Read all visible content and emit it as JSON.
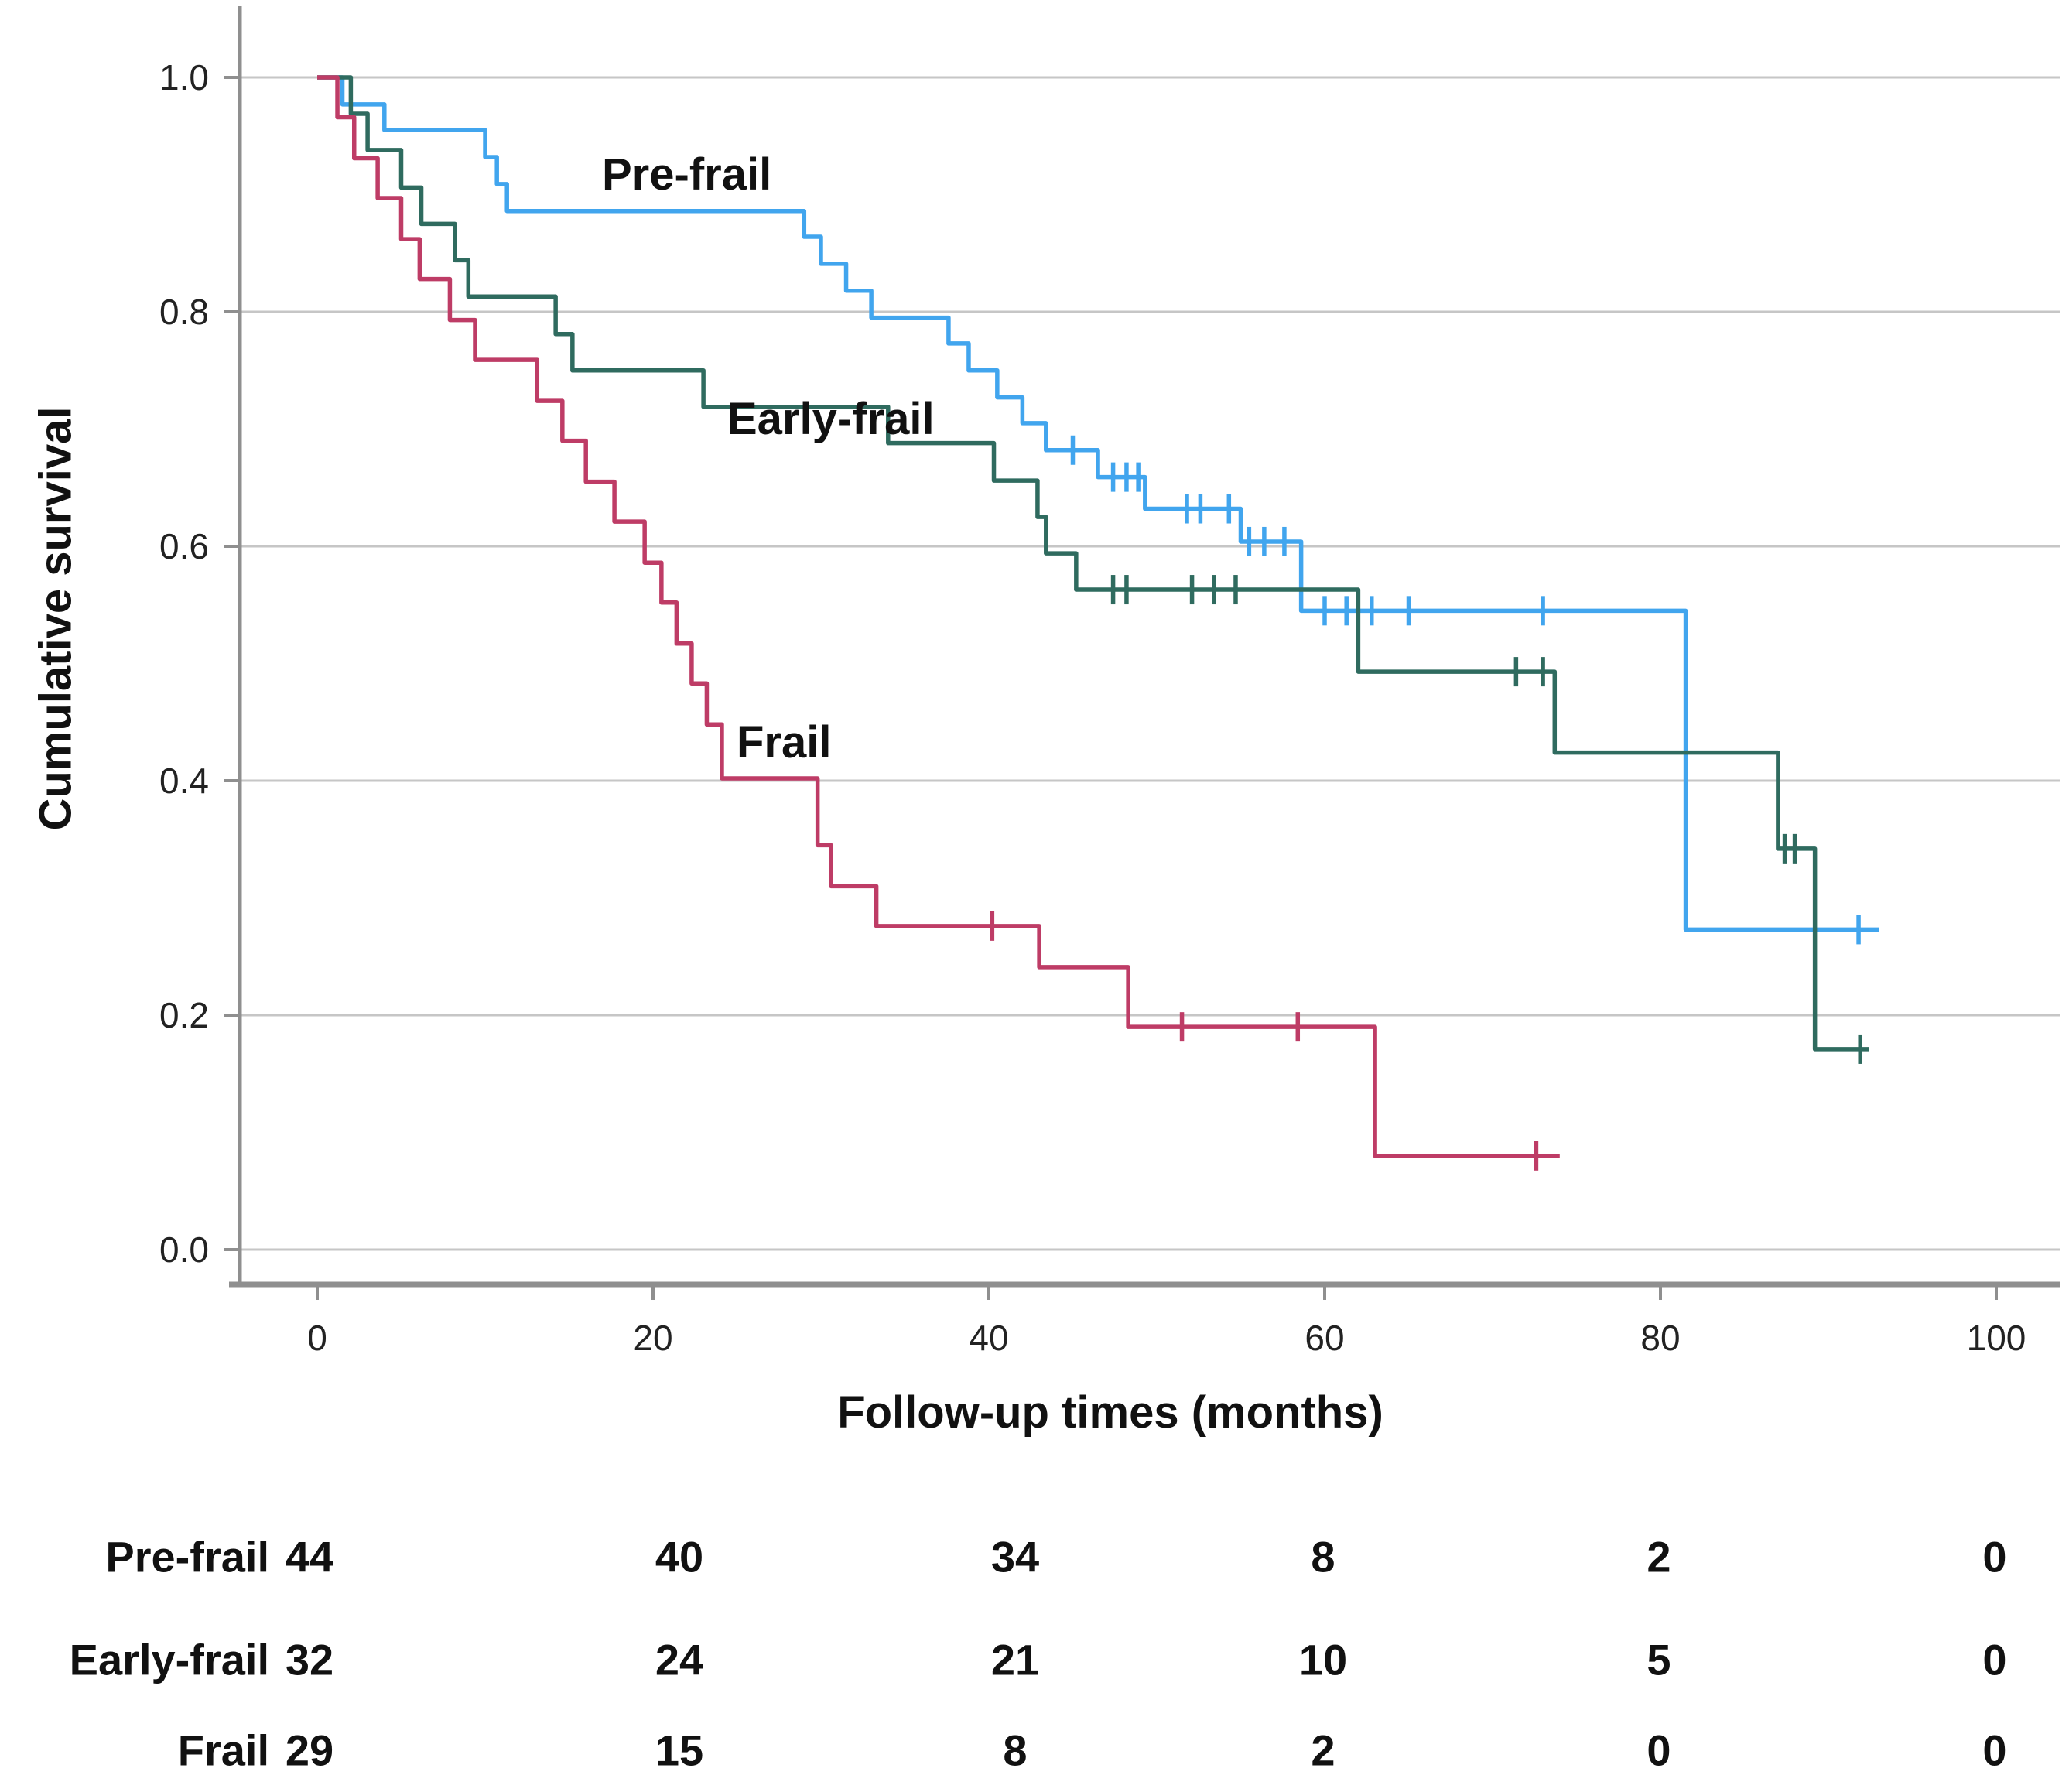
{
  "figure": {
    "background": "#ffffff",
    "text_color": "#111111",
    "grid_color": "#c6c6c6",
    "axis_color": "#8f8f8f"
  },
  "axes": {
    "x": {
      "label": "Follow-up times (months)",
      "ticks": [
        {
          "t": 0,
          "label": "0"
        },
        {
          "t": 20,
          "label": "20"
        },
        {
          "t": 40,
          "label": "40"
        },
        {
          "t": 60,
          "label": "60"
        },
        {
          "t": 80,
          "label": "80"
        },
        {
          "t": 100,
          "label": "100"
        }
      ],
      "range": [
        0,
        100
      ]
    },
    "y": {
      "label": "Cumulative survival",
      "ticks": [
        {
          "v": 1.0,
          "label": "1.0"
        },
        {
          "v": 0.8,
          "label": "0.8"
        },
        {
          "v": 0.6,
          "label": "0.6"
        },
        {
          "v": 0.4,
          "label": "0.4"
        },
        {
          "v": 0.2,
          "label": "0.2"
        },
        {
          "v": 0.0,
          "label": "0.0"
        }
      ],
      "range": [
        0,
        1
      ]
    }
  },
  "chart_data": {
    "type": "line",
    "subtype": "kaplan-meier-step",
    "title": "",
    "xlabel": "Follow-up times (months)",
    "ylabel": "Cumulative survival",
    "xlim": [
      0,
      104
    ],
    "ylim": [
      0,
      1.05
    ],
    "grid": "horizontal",
    "legend_position": "inline-labels",
    "series": [
      {
        "name": "Pre-frail",
        "color": "#41a5ee",
        "steps": [
          [
            0,
            1.0
          ],
          [
            1.5,
            0.977
          ],
          [
            4,
            0.955
          ],
          [
            10,
            0.932
          ],
          [
            10.7,
            0.909
          ],
          [
            11.3,
            0.886
          ],
          [
            29,
            0.864
          ],
          [
            30,
            0.841
          ],
          [
            31.5,
            0.818
          ],
          [
            33,
            0.795
          ],
          [
            37.6,
            0.773
          ],
          [
            38.8,
            0.75
          ],
          [
            40.5,
            0.727
          ],
          [
            42,
            0.705
          ],
          [
            43.4,
            0.682
          ],
          [
            46.5,
            0.659
          ],
          [
            49.3,
            0.632
          ],
          [
            55,
            0.604
          ],
          [
            58.6,
            0.545
          ],
          [
            81.5,
            0.273
          ]
        ],
        "end_time": 93,
        "censors": [
          [
            45,
            0.682
          ],
          [
            47.4,
            0.659
          ],
          [
            48.2,
            0.659
          ],
          [
            48.9,
            0.659
          ],
          [
            51.8,
            0.632
          ],
          [
            52.6,
            0.632
          ],
          [
            54.3,
            0.632
          ],
          [
            55.5,
            0.604
          ],
          [
            56.4,
            0.604
          ],
          [
            57.6,
            0.604
          ],
          [
            60,
            0.545
          ],
          [
            61.3,
            0.545
          ],
          [
            62.8,
            0.545
          ],
          [
            65,
            0.545
          ],
          [
            73,
            0.545
          ],
          [
            91.8,
            0.273
          ]
        ]
      },
      {
        "name": "Early-frail",
        "color": "#2f6b5f",
        "steps": [
          [
            0,
            1.0
          ],
          [
            2,
            0.969
          ],
          [
            3,
            0.938
          ],
          [
            5,
            0.906
          ],
          [
            6.2,
            0.875
          ],
          [
            8.2,
            0.844
          ],
          [
            9,
            0.813
          ],
          [
            14.2,
            0.781
          ],
          [
            15.2,
            0.75
          ],
          [
            23,
            0.719
          ],
          [
            34,
            0.688
          ],
          [
            40.3,
            0.656
          ],
          [
            42.9,
            0.625
          ],
          [
            43.4,
            0.594
          ],
          [
            45.2,
            0.563
          ],
          [
            62,
            0.493
          ],
          [
            73.7,
            0.424
          ],
          [
            87,
            0.342
          ],
          [
            89.2,
            0.171
          ]
        ],
        "end_time": 92.4,
        "censors": [
          [
            47.4,
            0.563
          ],
          [
            48.2,
            0.563
          ],
          [
            52.1,
            0.563
          ],
          [
            53.4,
            0.563
          ],
          [
            54.7,
            0.563
          ],
          [
            71.4,
            0.493
          ],
          [
            73,
            0.493
          ],
          [
            87.4,
            0.342
          ],
          [
            88,
            0.342
          ],
          [
            91.9,
            0.171
          ]
        ]
      },
      {
        "name": "Frail",
        "color": "#be3c66",
        "steps": [
          [
            0,
            1.0
          ],
          [
            1.2,
            0.966
          ],
          [
            2.2,
            0.931
          ],
          [
            3.6,
            0.897
          ],
          [
            5,
            0.862
          ],
          [
            6.1,
            0.828
          ],
          [
            7.9,
            0.793
          ],
          [
            9.4,
            0.759
          ],
          [
            13.1,
            0.724
          ],
          [
            14.6,
            0.69
          ],
          [
            16,
            0.655
          ],
          [
            17.7,
            0.621
          ],
          [
            19.5,
            0.586
          ],
          [
            20.5,
            0.552
          ],
          [
            21.4,
            0.517
          ],
          [
            22.3,
            0.483
          ],
          [
            23.2,
            0.448
          ],
          [
            24.1,
            0.402
          ],
          [
            29.8,
            0.345
          ],
          [
            30.6,
            0.31
          ],
          [
            33.3,
            0.276
          ],
          [
            43,
            0.241
          ],
          [
            48.3,
            0.19
          ],
          [
            63,
            0.08
          ]
        ],
        "end_time": 74,
        "censors": [
          [
            40.2,
            0.276
          ],
          [
            51.5,
            0.19
          ],
          [
            58.4,
            0.19
          ],
          [
            72.6,
            0.08
          ]
        ]
      }
    ]
  },
  "curve_labels": {
    "pre_frail": "Pre-frail",
    "early_frail": "Early-frail",
    "frail": "Frail"
  },
  "risk_table": {
    "times": [
      0,
      20,
      40,
      60,
      80,
      100
    ],
    "rows": [
      {
        "label": "Pre-frail",
        "counts": [
          "44",
          "40",
          "34",
          "8",
          "2",
          "0"
        ]
      },
      {
        "label": "Early-frail",
        "counts": [
          "32",
          "24",
          "21",
          "10",
          "5",
          "0"
        ]
      },
      {
        "label": "Frail",
        "counts": [
          "29",
          "15",
          "8",
          "2",
          "0",
          "0"
        ]
      }
    ]
  }
}
